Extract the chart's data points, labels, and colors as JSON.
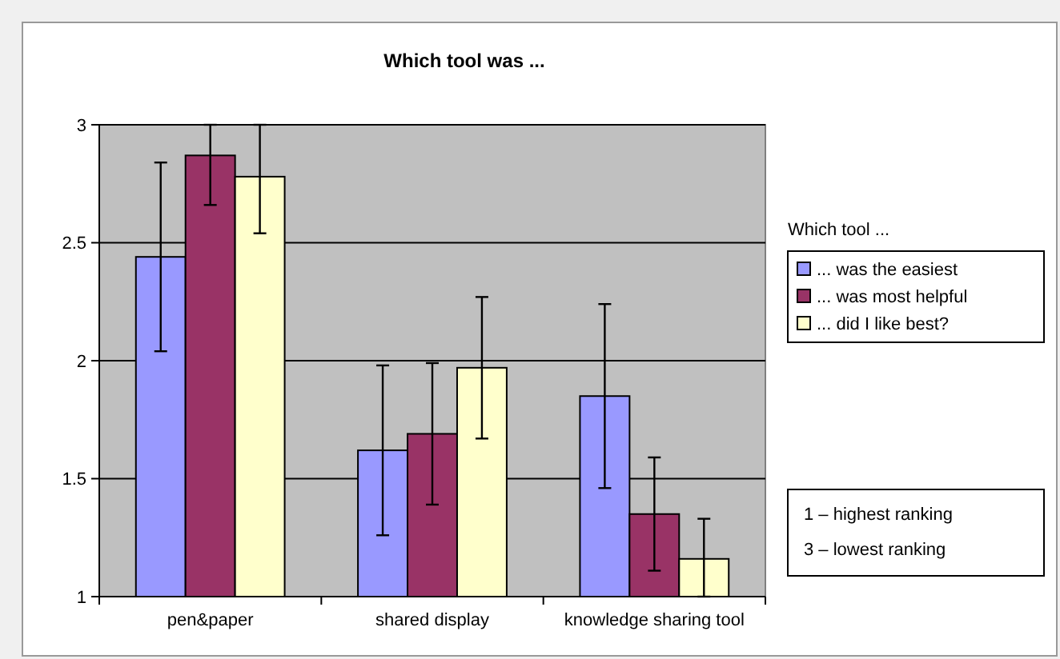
{
  "chart_data": {
    "type": "bar",
    "title": "Which tool was ...",
    "legend_title": "Which tool ...",
    "categories": [
      "pen&paper",
      "shared display",
      "knowledge sharing tool"
    ],
    "series": [
      {
        "name": "... was the easiest",
        "color": "#9999ff",
        "values": [
          2.44,
          1.62,
          1.85
        ],
        "errors": [
          0.4,
          0.36,
          0.39
        ]
      },
      {
        "name": "... was most helpful",
        "color": "#993366",
        "values": [
          2.87,
          1.69,
          1.35
        ],
        "errors": [
          [
            2.66,
            3.0
          ],
          0.3,
          0.24
        ]
      },
      {
        "name": "... did I like best?",
        "color": "#ffffcc",
        "values": [
          2.78,
          1.97,
          1.16
        ],
        "errors": [
          [
            2.54,
            3.0
          ],
          0.3,
          [
            1.0,
            1.33
          ]
        ]
      }
    ],
    "ylim": [
      1,
      3
    ],
    "yticks": [
      1,
      1.5,
      2,
      2.5,
      3
    ],
    "grid": "y",
    "legend": "right",
    "annotations": [
      "1 – highest ranking",
      "3 – lowest ranking"
    ]
  }
}
